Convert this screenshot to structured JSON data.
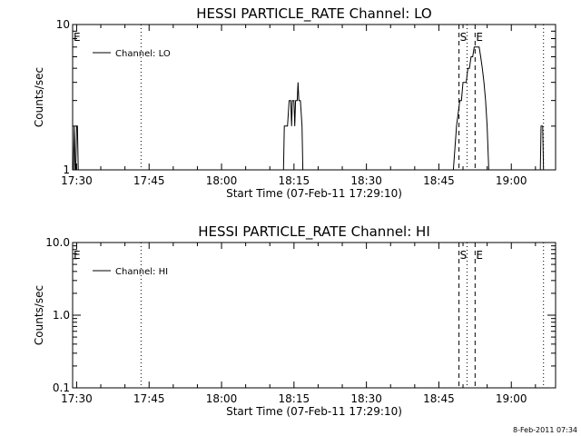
{
  "footer": {
    "timestamp": "8-Feb-2011 07:34"
  },
  "chart_data": [
    {
      "type": "line",
      "title": "HESSI PARTICLE_RATE Channel: LO",
      "xlabel": "Start Time (07-Feb-11 17:29:10)",
      "ylabel": "Counts/sec",
      "yscale": "log",
      "ylim": [
        1,
        10
      ],
      "xlim": [
        "17:29:10",
        "19:09:10"
      ],
      "x_tick_labels": [
        "17:30",
        "17:45",
        "18:00",
        "18:15",
        "18:30",
        "18:45",
        "19:00"
      ],
      "y_tick_labels": [
        "1",
        "10"
      ],
      "legend": {
        "label": "Channel: LO",
        "position": "top-left"
      },
      "series": [
        {
          "name": "Channel: LO",
          "points": [
            [
              "17:29:20",
              1
            ],
            [
              "17:29:30",
              2
            ],
            [
              "17:29:40",
              1
            ],
            [
              "17:29:50",
              1
            ],
            [
              "17:30:00",
              2
            ],
            [
              "17:30:10",
              2
            ],
            [
              "17:30:20",
              1
            ],
            [
              "18:12:50",
              1
            ],
            [
              "18:13:00",
              2
            ],
            [
              "18:13:20",
              2
            ],
            [
              "18:13:40",
              2
            ],
            [
              "18:14:00",
              3
            ],
            [
              "18:14:20",
              3
            ],
            [
              "18:14:30",
              2
            ],
            [
              "18:14:40",
              3
            ],
            [
              "18:15:00",
              3
            ],
            [
              "18:15:10",
              2
            ],
            [
              "18:15:20",
              3
            ],
            [
              "18:15:40",
              3
            ],
            [
              "18:15:50",
              4
            ],
            [
              "18:16:00",
              3
            ],
            [
              "18:16:20",
              3
            ],
            [
              "18:16:40",
              2
            ],
            [
              "18:16:50",
              1
            ],
            [
              "18:48:00",
              1
            ],
            [
              "18:48:40",
              2
            ],
            [
              "18:49:20",
              3
            ],
            [
              "18:49:40",
              3
            ],
            [
              "18:50:00",
              4
            ],
            [
              "18:50:20",
              4
            ],
            [
              "18:50:40",
              4
            ],
            [
              "18:51:00",
              5
            ],
            [
              "18:51:20",
              5
            ],
            [
              "18:51:40",
              6
            ],
            [
              "18:52:00",
              6
            ],
            [
              "18:52:20",
              7
            ],
            [
              "18:52:40",
              7
            ],
            [
              "18:53:00",
              7
            ],
            [
              "18:53:20",
              7
            ],
            [
              "18:53:40",
              6
            ],
            [
              "18:54:00",
              5
            ],
            [
              "18:54:20",
              4
            ],
            [
              "18:54:40",
              3
            ],
            [
              "18:55:00",
              2
            ],
            [
              "18:55:20",
              1
            ],
            [
              "19:06:00",
              1
            ],
            [
              "19:06:10",
              2
            ],
            [
              "19:06:30",
              2
            ],
            [
              "19:06:40",
              1
            ]
          ]
        }
      ],
      "markers": [
        {
          "label": "E",
          "time": "17:29:10",
          "style": "dashed"
        },
        {
          "label": "",
          "time": "17:43:20",
          "style": "dotted"
        },
        {
          "label": "S",
          "time": "18:49:10",
          "style": "dashed"
        },
        {
          "label": "",
          "time": "18:50:50",
          "style": "dotted"
        },
        {
          "label": "E",
          "time": "18:52:30",
          "style": "dashed"
        },
        {
          "label": "",
          "time": "19:06:40",
          "style": "dotted"
        }
      ]
    },
    {
      "type": "line",
      "title": "HESSI PARTICLE_RATE Channel: HI",
      "xlabel": "Start Time (07-Feb-11 17:29:10)",
      "ylabel": "Counts/sec",
      "yscale": "log",
      "ylim": [
        0.1,
        10.0
      ],
      "xlim": [
        "17:29:10",
        "19:09:10"
      ],
      "x_tick_labels": [
        "17:30",
        "17:45",
        "18:00",
        "18:15",
        "18:30",
        "18:45",
        "19:00"
      ],
      "y_tick_labels": [
        "0.1",
        "1.0",
        "10.0"
      ],
      "legend": {
        "label": "Channel: HI",
        "position": "top-left"
      },
      "series": [
        {
          "name": "Channel: HI",
          "points": []
        }
      ],
      "markers": [
        {
          "label": "E",
          "time": "17:29:10",
          "style": "dashed"
        },
        {
          "label": "",
          "time": "17:43:20",
          "style": "dotted"
        },
        {
          "label": "S",
          "time": "18:49:10",
          "style": "dashed"
        },
        {
          "label": "",
          "time": "18:50:50",
          "style": "dotted"
        },
        {
          "label": "E",
          "time": "18:52:30",
          "style": "dashed"
        },
        {
          "label": "",
          "time": "19:06:40",
          "style": "dotted"
        }
      ]
    }
  ]
}
